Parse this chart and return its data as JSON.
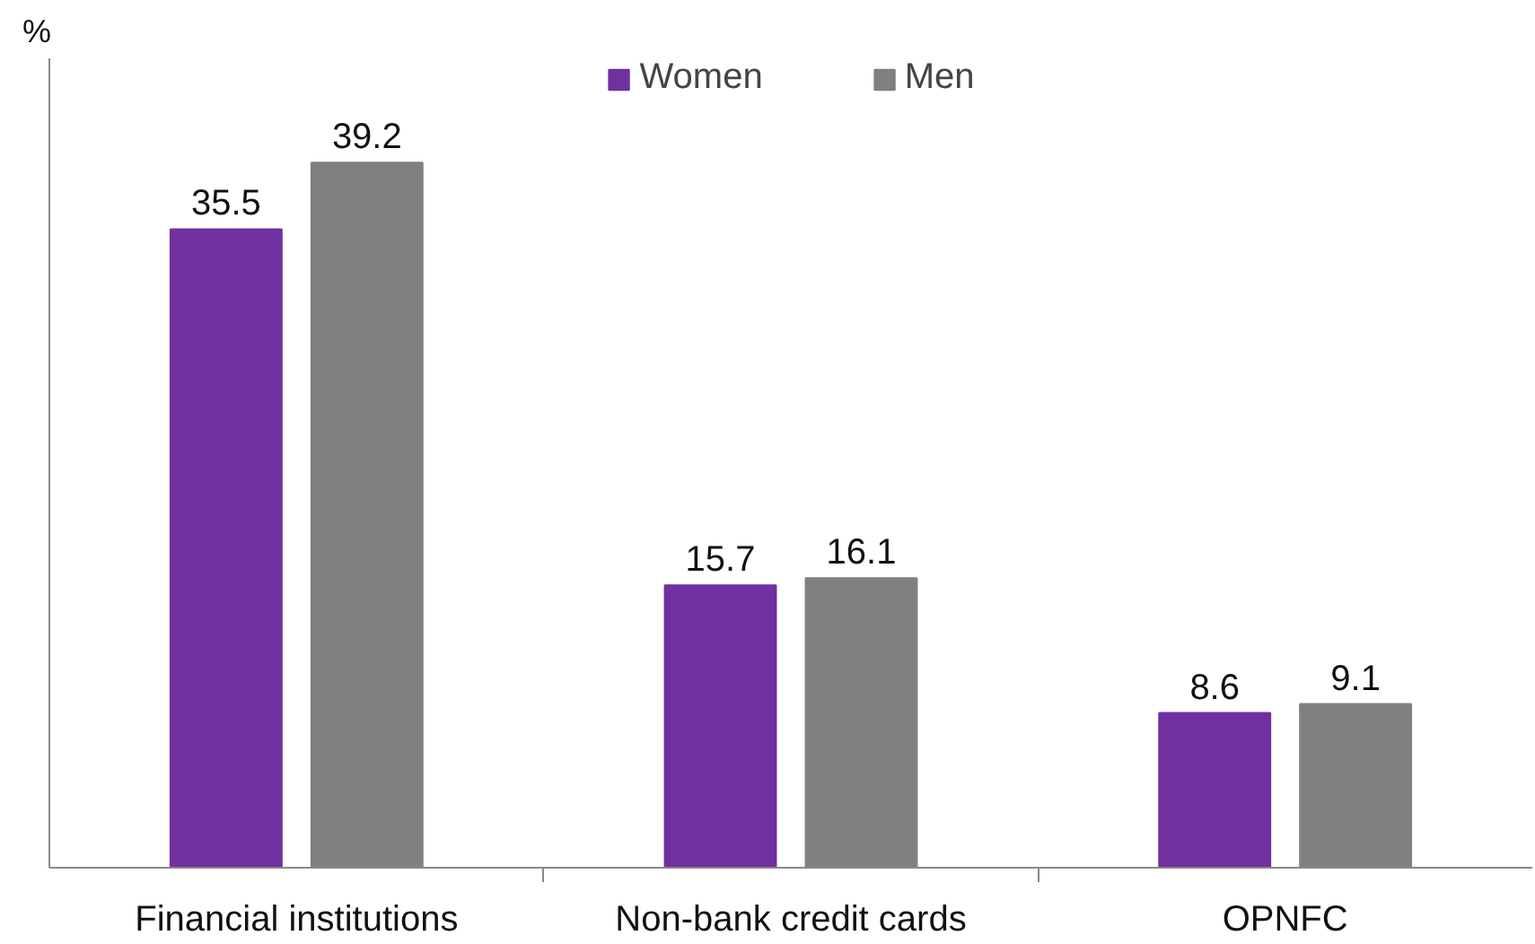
{
  "chart_data": {
    "type": "bar",
    "ylabel": "%",
    "categories": [
      "Financial institutions",
      "Non-bank credit cards",
      "OPNFC"
    ],
    "series": [
      {
        "name": "Women",
        "color": "#7030a0",
        "values": [
          35.5,
          15.7,
          8.6
        ]
      },
      {
        "name": "Men",
        "color": "#808080",
        "values": [
          39.2,
          16.1,
          9.1
        ]
      }
    ],
    "ylim": [
      0,
      45
    ],
    "data_labels": true,
    "legend": "top",
    "grid": false,
    "relative": false
  }
}
